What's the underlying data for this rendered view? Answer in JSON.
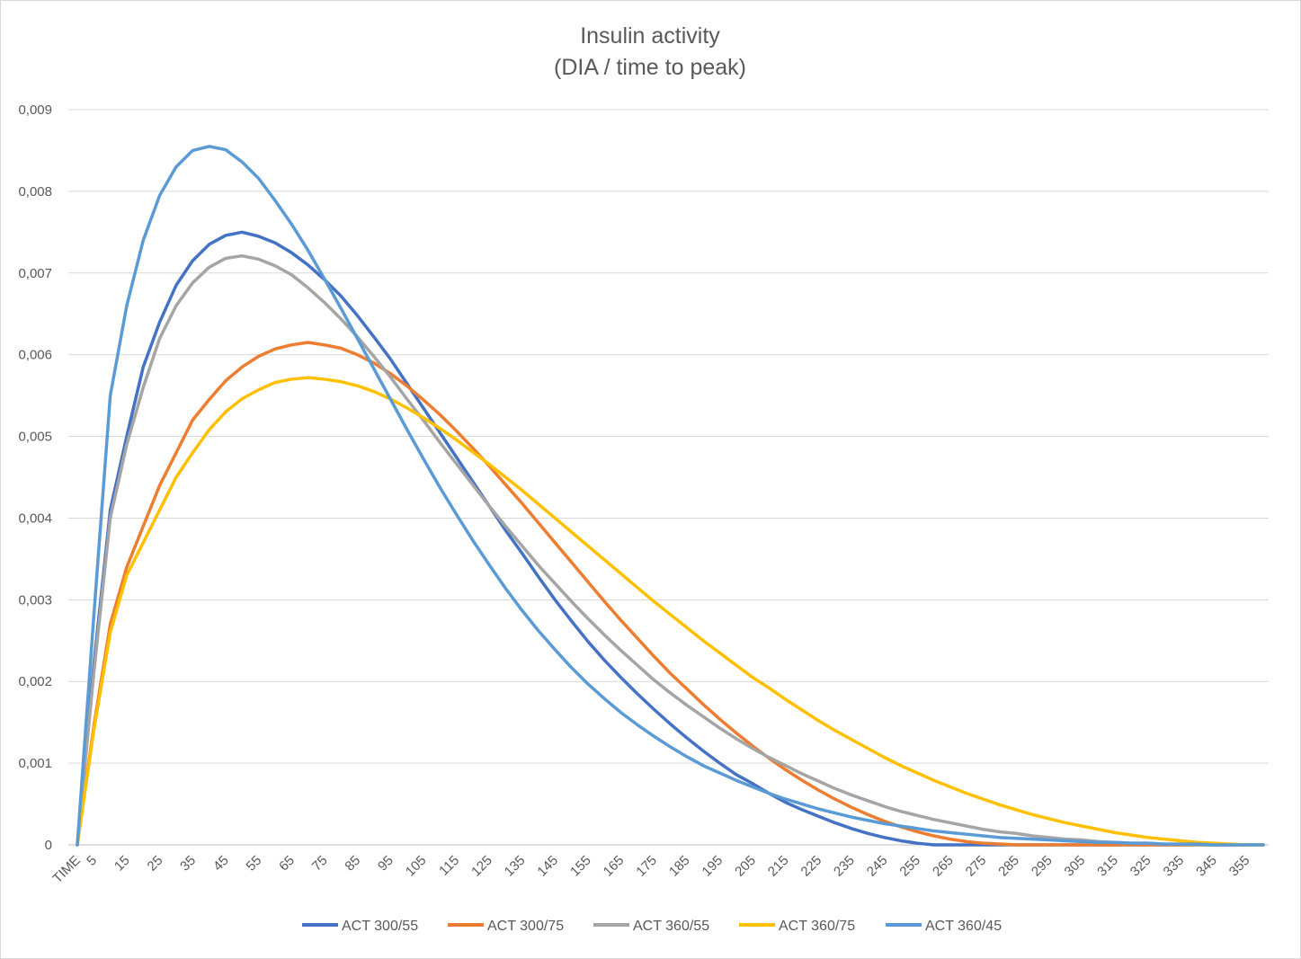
{
  "chart_data": {
    "type": "line",
    "title": "Insulin activity",
    "subtitle": "(DIA / time to peak)",
    "xlabel": "",
    "ylabel": "",
    "grid": true,
    "legend_position": "bottom",
    "ylim": [
      0,
      0.009
    ],
    "y_ticks": [
      0,
      0.001,
      0.002,
      0.003,
      0.004,
      0.005,
      0.006,
      0.007,
      0.008,
      0.009
    ],
    "y_tick_labels": [
      "0",
      "0,001",
      "0,002",
      "0,003",
      "0,004",
      "0,005",
      "0,006",
      "0,007",
      "0,008",
      "0,009"
    ],
    "x_tick_labels": [
      "TIME",
      "5",
      "15",
      "25",
      "35",
      "45",
      "55",
      "65",
      "75",
      "85",
      "95",
      "105",
      "115",
      "125",
      "135",
      "145",
      "155",
      "165",
      "175",
      "185",
      "195",
      "205",
      "215",
      "225",
      "235",
      "245",
      "255",
      "265",
      "275",
      "285",
      "295",
      "305",
      "315",
      "325",
      "335",
      "345",
      "355"
    ],
    "x": [
      0,
      5,
      10,
      15,
      20,
      25,
      30,
      35,
      40,
      45,
      50,
      55,
      60,
      65,
      70,
      75,
      80,
      85,
      90,
      95,
      100,
      105,
      110,
      115,
      120,
      125,
      130,
      135,
      140,
      145,
      150,
      155,
      160,
      165,
      170,
      175,
      180,
      185,
      190,
      195,
      200,
      205,
      210,
      215,
      220,
      225,
      230,
      235,
      240,
      245,
      250,
      255,
      260,
      265,
      270,
      275,
      280,
      285,
      290,
      295,
      300,
      305,
      310,
      315,
      320,
      325,
      330,
      335,
      340,
      345,
      350,
      355,
      360
    ],
    "series": [
      {
        "name": "ACT 300/55",
        "color": "#4472c4",
        "values": [
          0,
          0.0022,
          0.0041,
          0.005,
          0.00585,
          0.0064,
          0.00685,
          0.00715,
          0.00735,
          0.00746,
          0.0075,
          0.00745,
          0.00737,
          0.00725,
          0.0071,
          0.00692,
          0.00672,
          0.00648,
          0.00622,
          0.00595,
          0.00565,
          0.00535,
          0.00505,
          0.00475,
          0.00445,
          0.00415,
          0.00385,
          0.00357,
          0.00328,
          0.003,
          0.00274,
          0.00249,
          0.00226,
          0.00205,
          0.00185,
          0.00166,
          0.00148,
          0.00131,
          0.00115,
          0.001,
          0.00086,
          0.00075,
          0.00063,
          0.00052,
          0.00043,
          0.00035,
          0.00027,
          0.0002,
          0.00014,
          9e-05,
          5e-05,
          2e-05,
          0,
          0,
          0,
          0,
          0,
          0,
          0,
          0,
          0,
          0,
          0,
          0,
          0,
          0,
          0,
          0,
          0,
          0,
          0,
          0,
          0
        ]
      },
      {
        "name": "ACT 300/75",
        "color": "#ed7d31",
        "values": [
          0,
          0.00145,
          0.0027,
          0.0034,
          0.0039,
          0.0044,
          0.0048,
          0.0052,
          0.00545,
          0.00568,
          0.00585,
          0.00598,
          0.00607,
          0.00612,
          0.00615,
          0.00612,
          0.00608,
          0.006,
          0.0059,
          0.00577,
          0.00562,
          0.00545,
          0.00527,
          0.00507,
          0.00486,
          0.00464,
          0.00441,
          0.00418,
          0.00394,
          0.0037,
          0.00346,
          0.00322,
          0.00298,
          0.00275,
          0.00253,
          0.00231,
          0.0021,
          0.00191,
          0.00172,
          0.00154,
          0.00137,
          0.00121,
          0.00106,
          0.00092,
          0.00079,
          0.00067,
          0.00056,
          0.00046,
          0.00037,
          0.00029,
          0.00022,
          0.00016,
          0.00011,
          7e-05,
          4e-05,
          2e-05,
          1e-05,
          0,
          0,
          0,
          0,
          0,
          0,
          0,
          0,
          0,
          0,
          0,
          0,
          0,
          0,
          0,
          0
        ]
      },
      {
        "name": "ACT 360/55",
        "color": "#a5a5a5",
        "values": [
          0,
          0.0021,
          0.004,
          0.0049,
          0.0056,
          0.0062,
          0.0066,
          0.00688,
          0.00707,
          0.00718,
          0.00721,
          0.00717,
          0.00709,
          0.00698,
          0.00682,
          0.00664,
          0.00644,
          0.00622,
          0.00598,
          0.00573,
          0.00546,
          0.0052,
          0.00493,
          0.00467,
          0.00441,
          0.00415,
          0.0039,
          0.00366,
          0.00342,
          0.0032,
          0.00298,
          0.00277,
          0.00257,
          0.00238,
          0.0022,
          0.00202,
          0.00186,
          0.00171,
          0.00157,
          0.00143,
          0.0013,
          0.00118,
          0.00107,
          0.00097,
          0.00087,
          0.00078,
          0.00069,
          0.00061,
          0.00054,
          0.00047,
          0.00041,
          0.00036,
          0.00031,
          0.00027,
          0.00023,
          0.00019,
          0.00016,
          0.00014,
          0.00011,
          9e-05,
          7e-05,
          6e-05,
          4e-05,
          3e-05,
          2e-05,
          2e-05,
          1e-05,
          1e-05,
          0,
          0,
          0,
          0,
          0
        ]
      },
      {
        "name": "ACT 360/75",
        "color": "#ffc000",
        "values": [
          0,
          0.0014,
          0.0026,
          0.0033,
          0.0037,
          0.0041,
          0.0045,
          0.0048,
          0.00508,
          0.0053,
          0.00546,
          0.00557,
          0.00566,
          0.0057,
          0.00572,
          0.0057,
          0.00567,
          0.00562,
          0.00555,
          0.00546,
          0.00535,
          0.00523,
          0.0051,
          0.00496,
          0.00481,
          0.00466,
          0.0045,
          0.00434,
          0.00417,
          0.004,
          0.00383,
          0.00366,
          0.00349,
          0.00332,
          0.00315,
          0.00298,
          0.00282,
          0.00266,
          0.0025,
          0.00235,
          0.0022,
          0.00205,
          0.00192,
          0.00178,
          0.00165,
          0.00152,
          0.0014,
          0.00129,
          0.00118,
          0.00107,
          0.00097,
          0.00088,
          0.00079,
          0.00071,
          0.00063,
          0.00056,
          0.00049,
          0.00043,
          0.00037,
          0.00032,
          0.00027,
          0.00023,
          0.00019,
          0.00015,
          0.00012,
          9e-05,
          7e-05,
          5e-05,
          3e-05,
          2e-05,
          1e-05,
          0,
          0
        ]
      },
      {
        "name": "ACT 360/45",
        "color": "#5b9bd5",
        "values": [
          0,
          0.0028,
          0.0055,
          0.0066,
          0.0074,
          0.00795,
          0.0083,
          0.0085,
          0.00855,
          0.00851,
          0.00836,
          0.00816,
          0.00789,
          0.0076,
          0.00728,
          0.00693,
          0.00657,
          0.0062,
          0.00583,
          0.00546,
          0.00509,
          0.00473,
          0.00438,
          0.00405,
          0.00373,
          0.00343,
          0.00314,
          0.00287,
          0.00262,
          0.00239,
          0.00217,
          0.00197,
          0.00179,
          0.00162,
          0.00147,
          0.00133,
          0.0012,
          0.00108,
          0.00097,
          0.00088,
          0.00079,
          0.00071,
          0.00063,
          0.00056,
          0.0005,
          0.00044,
          0.00039,
          0.00034,
          0.0003,
          0.00026,
          0.00023,
          0.0002,
          0.00017,
          0.00015,
          0.00013,
          0.00011,
          9e-05,
          8e-05,
          7e-05,
          6e-05,
          5e-05,
          4e-05,
          3e-05,
          3e-05,
          2e-05,
          2e-05,
          1e-05,
          1e-05,
          1e-05,
          0,
          0,
          0,
          0
        ]
      }
    ]
  }
}
